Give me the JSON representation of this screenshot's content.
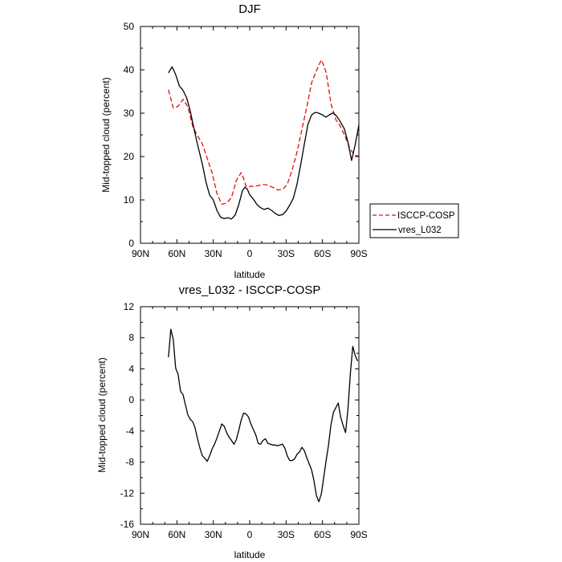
{
  "chart_data": [
    {
      "type": "line",
      "title": "DJF",
      "xlabel": "latitude",
      "ylabel": "Mid-topped cloud (percent)",
      "xlim": [
        90,
        -90
      ],
      "ylim": [
        0,
        50
      ],
      "xticks": [
        90,
        60,
        30,
        0,
        -30,
        -60,
        -90
      ],
      "xtick_labels": [
        "90N",
        "60N",
        "30N",
        "0",
        "30S",
        "60S",
        "90S"
      ],
      "yticks": [
        0,
        10,
        20,
        30,
        40,
        50
      ],
      "ytick_labels": [
        "0",
        "10",
        "20",
        "30",
        "40",
        "50"
      ],
      "legend": {
        "placement": "outside-right",
        "entries": [
          "ISCCP-COSP",
          "vres_L032"
        ]
      },
      "series": [
        {
          "name": "ISCCP-COSP",
          "color": "#e01010",
          "dash": "dashed",
          "x": [
            67,
            63,
            59,
            55,
            51,
            47,
            43,
            39,
            35,
            31,
            27,
            23,
            19,
            15,
            11,
            7,
            5,
            3,
            1,
            -1,
            -3,
            -7,
            -11,
            -15,
            -19,
            -23,
            -27,
            -31,
            -35,
            -39,
            -43,
            -47,
            -51,
            -55,
            -59,
            -61,
            -63,
            -65,
            -67,
            -71,
            -75,
            -79,
            -83,
            -87,
            -90
          ],
          "y": [
            35.4,
            31.2,
            31.6,
            33.2,
            31.5,
            27.0,
            24.8,
            22.9,
            19.6,
            16.2,
            11.5,
            9.0,
            9.3,
            10.5,
            14.5,
            16.3,
            15.0,
            13.1,
            12.9,
            13.2,
            13.1,
            13.3,
            13.6,
            13.4,
            12.9,
            12.3,
            12.4,
            13.6,
            16.9,
            21.0,
            26.2,
            31.3,
            37.0,
            39.8,
            42.3,
            41.0,
            39.4,
            36.0,
            32.2,
            28.5,
            26.9,
            24.4,
            21.6,
            20.3,
            20.1
          ]
        },
        {
          "name": "vres_L032",
          "color": "#000000",
          "dash": "solid",
          "x": [
            67,
            64,
            61,
            58,
            55,
            52,
            49,
            46,
            43,
            39,
            36,
            33,
            30,
            27,
            24,
            21,
            18,
            15,
            12,
            9,
            6,
            4,
            2,
            0,
            -3,
            -6,
            -9,
            -12,
            -15,
            -18,
            -21,
            -24,
            -27,
            -30,
            -33,
            -36,
            -39,
            -42,
            -45,
            -48,
            -51,
            -54,
            -57,
            -60,
            -63,
            -66,
            -69,
            -72,
            -75,
            -78,
            -81,
            -84,
            -87,
            -90
          ],
          "y": [
            39.3,
            40.7,
            38.9,
            36.3,
            35.3,
            33.6,
            30.5,
            26.5,
            22.8,
            18.2,
            14.1,
            11.1,
            10.0,
            7.6,
            6.0,
            5.7,
            5.9,
            5.6,
            6.5,
            8.9,
            12.1,
            12.9,
            12.5,
            11.2,
            10.2,
            8.9,
            8.2,
            7.8,
            8.1,
            7.6,
            6.9,
            6.4,
            6.6,
            7.4,
            8.8,
            10.4,
            13.6,
            18.1,
            22.8,
            27.4,
            29.6,
            30.2,
            30.0,
            29.6,
            29.1,
            29.7,
            30.1,
            29.2,
            27.9,
            26.4,
            23.3,
            19.1,
            22.8,
            27.3
          ]
        }
      ]
    },
    {
      "type": "line",
      "title": "vres_L032 - ISCCP-COSP",
      "xlabel": "latitude",
      "ylabel": "Mid-topped cloud (percent)",
      "xlim": [
        90,
        -90
      ],
      "ylim": [
        -16,
        12
      ],
      "xticks": [
        90,
        60,
        30,
        0,
        -30,
        -60,
        -90
      ],
      "xtick_labels": [
        "90N",
        "60N",
        "30N",
        "0",
        "30S",
        "60S",
        "90S"
      ],
      "yticks": [
        -16,
        -12,
        -8,
        -4,
        0,
        4,
        8,
        12
      ],
      "ytick_labels": [
        "-16",
        "-12",
        "-8",
        "-4",
        "0",
        "4",
        "8",
        "12"
      ],
      "series": [
        {
          "name": "vres_L032 - ISCCP-COSP",
          "color": "#000000",
          "dash": "solid",
          "x": [
            67,
            65,
            63,
            61,
            59,
            57,
            55,
            53,
            51,
            49,
            47,
            45,
            43,
            41,
            39,
            37,
            35,
            33,
            31,
            29,
            27,
            25,
            23,
            21,
            19,
            17,
            15,
            13,
            11,
            9,
            7,
            5,
            3,
            1,
            -1,
            -3,
            -5,
            -7,
            -9,
            -11,
            -13,
            -15,
            -17,
            -19,
            -21,
            -23,
            -25,
            -27,
            -29,
            -31,
            -33,
            -35,
            -37,
            -39,
            -41,
            -43,
            -45,
            -47,
            -49,
            -51,
            -53,
            -55,
            -57,
            -59,
            -61,
            -63,
            -65,
            -67,
            -69,
            -71,
            -73,
            -75,
            -77,
            -79,
            -81,
            -83,
            -85,
            -87,
            -89
          ],
          "y": [
            5.5,
            9.1,
            7.8,
            4.1,
            3.3,
            1.1,
            0.7,
            -0.6,
            -1.9,
            -2.5,
            -2.8,
            -3.6,
            -5.0,
            -6.2,
            -7.2,
            -7.5,
            -7.9,
            -7.2,
            -6.3,
            -5.7,
            -4.9,
            -4.0,
            -3.1,
            -3.4,
            -4.2,
            -4.8,
            -5.2,
            -5.7,
            -5.1,
            -3.9,
            -2.6,
            -1.7,
            -1.8,
            -2.2,
            -3.1,
            -3.8,
            -4.5,
            -5.6,
            -5.7,
            -5.2,
            -5.0,
            -5.6,
            -5.7,
            -5.8,
            -5.8,
            -5.9,
            -5.8,
            -5.7,
            -6.2,
            -7.2,
            -7.8,
            -7.8,
            -7.6,
            -7.0,
            -6.7,
            -6.1,
            -6.5,
            -7.4,
            -8.2,
            -9.0,
            -10.4,
            -12.3,
            -13.1,
            -12.1,
            -10.0,
            -7.8,
            -5.8,
            -3.2,
            -1.6,
            -1.0,
            -0.4,
            -2.2,
            -3.3,
            -4.2,
            -1.2,
            3.4,
            6.9,
            5.7,
            5.0
          ]
        }
      ]
    }
  ]
}
